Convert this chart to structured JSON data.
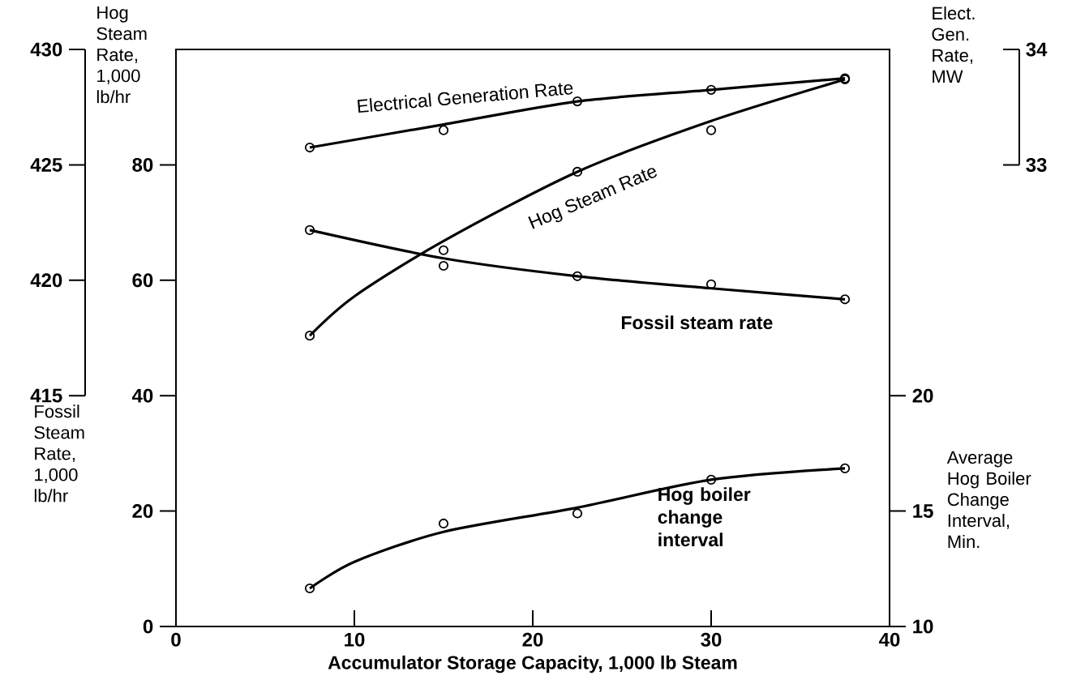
{
  "chart_data": [
    {
      "type": "line",
      "xlabel": "Accumulator Storage Capacity, 1,000 lb Steam",
      "ylabel": "Fossil Steam Rate, 1,000 lb/hr",
      "y2label": "Average Hog Boiler Change Interval, Min.",
      "y3label": "Hog Steam Rate, 1,000 lb/hr",
      "xlim": [
        0,
        40
      ],
      "xticks": [
        0,
        10,
        20,
        30,
        40
      ],
      "ylim": [
        0,
        100
      ],
      "yticks": [
        0,
        20,
        40,
        60,
        80
      ],
      "y2lim": [
        10,
        35
      ],
      "y2ticks": [
        10,
        15,
        20
      ],
      "y3lim": [
        405,
        430
      ],
      "y3ticks": [
        415,
        420,
        425,
        430
      ],
      "grid": false,
      "series": [
        {
          "type": "scatter",
          "axis": "y3",
          "color": "#000000",
          "marker": "circle",
          "x": [
            7.5,
            15,
            22.5,
            30,
            37.5
          ],
          "values": [
            417.6,
            421.3,
            424.7,
            426.5,
            428.7
          ]
        },
        {
          "axis": "y3",
          "name": "Hog Steam Rate",
          "color": "#000000",
          "line_style": "solid",
          "x": [
            7.5,
            10,
            15,
            22.5,
            30,
            37.5
          ],
          "values": [
            417.6,
            419.3,
            421.7,
            424.7,
            426.9,
            428.7
          ]
        },
        {
          "type": "scatter",
          "color": "#000000",
          "marker": "circle",
          "x": [
            7.5,
            15,
            22.5,
            30,
            37.5
          ],
          "values": [
            68.7,
            62.5,
            60.7,
            59.3,
            56.7
          ]
        },
        {
          "name": "Fossil steam rate",
          "color": "#000000",
          "line_style": "solid",
          "x": [
            7.5,
            15,
            22.5,
            30,
            37.5
          ],
          "values": [
            68.7,
            63.8,
            60.7,
            58.6,
            56.7
          ]
        },
        {
          "type": "scatter",
          "axis": "y2",
          "color": "#000000",
          "marker": "circle",
          "x": [
            7.5,
            15,
            22.5,
            30,
            37.5
          ],
          "values": [
            11.65,
            14.46,
            14.9,
            16.36,
            16.85
          ]
        },
        {
          "axis": "y2",
          "name": "Hog boiler change interval",
          "color": "#000000",
          "line_style": "solid",
          "x": [
            7.5,
            10,
            15,
            22.5,
            30,
            37.5
          ],
          "values": [
            11.65,
            12.8,
            14.1,
            15.15,
            16.36,
            16.85
          ]
        }
      ]
    },
    {
      "type": "line",
      "ylabel": "Elect. Gen. Rate, MW",
      "xlim": [
        0,
        40
      ],
      "ylim": [
        33,
        34
      ],
      "yticks": [
        33,
        34
      ],
      "tick_labels": "y",
      "series": [
        {
          "type": "scatter",
          "color": "#000000",
          "marker": "circle",
          "x": [
            7.5,
            15,
            22.5,
            30,
            37.5
          ],
          "values": [
            33.15,
            33.3,
            33.55,
            33.65,
            33.75
          ]
        },
        {
          "name": "Electrical Generation Rate",
          "color": "#000000",
          "line_style": "solid",
          "x": [
            7.5,
            15,
            22.5,
            30,
            37.5
          ],
          "values": [
            33.15,
            33.35,
            33.55,
            33.65,
            33.75
          ]
        }
      ]
    }
  ]
}
